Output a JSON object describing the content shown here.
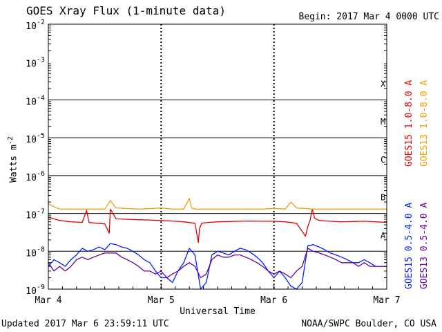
{
  "header": {
    "title": "GOES Xray Flux (1-minute data)",
    "begin": "Begin:  2017 Mar 4 0000 UTC"
  },
  "footer": {
    "updated": "Updated 2017 Mar  6 23:59:11 UTC",
    "credit": "NOAA/SWPC Boulder, CO USA"
  },
  "chart_data": {
    "type": "line",
    "title": "GOES Xray Flux (1-minute data)",
    "xlabel": "Universal Time",
    "ylabel": "Watts m",
    "ylabel_sup": "-2",
    "yscale": "log",
    "ylim_exp": [
      -9,
      -2
    ],
    "ytick_exponents": [
      -9,
      -8,
      -7,
      -6,
      -5,
      -4,
      -3,
      -2
    ],
    "x_ticks": [
      "Mar 4",
      "Mar 5",
      "Mar 6",
      "Mar 7"
    ],
    "xlim_days": [
      0,
      3
    ],
    "flare_classes": [
      {
        "label": "A",
        "exp": -8
      },
      {
        "label": "B",
        "exp": -7
      },
      {
        "label": "C",
        "exp": -6
      },
      {
        "label": "M",
        "exp": -5
      },
      {
        "label": "X",
        "exp": -4
      }
    ],
    "series": [
      {
        "name": "GOES15 1.0-8.0 A",
        "color": "#e00000",
        "x": [
          0.0,
          0.05,
          0.1,
          0.2,
          0.3,
          0.34,
          0.36,
          0.4,
          0.5,
          0.54,
          0.55,
          0.6,
          0.7,
          0.8,
          0.9,
          1.0,
          1.1,
          1.2,
          1.3,
          1.33,
          1.34,
          1.36,
          1.4,
          1.5,
          1.6,
          1.7,
          1.8,
          1.9,
          2.0,
          2.1,
          2.2,
          2.28,
          2.3,
          2.32,
          2.34,
          2.36,
          2.4,
          2.5,
          2.6,
          2.7,
          2.8,
          2.9,
          3.0
        ],
        "y": [
          8e-08,
          7.2e-08,
          6.5e-08,
          6e-08,
          5.8e-08,
          1.2e-07,
          5.8e-08,
          5.6e-08,
          5.3e-08,
          3e-08,
          1.3e-07,
          7.2e-08,
          7e-08,
          6.8e-08,
          6.7e-08,
          6.5e-08,
          6.3e-08,
          6e-08,
          5.5e-08,
          1.7e-08,
          4e-08,
          5.5e-08,
          5.7e-08,
          6e-08,
          6.1e-08,
          6.2e-08,
          6.3e-08,
          6.2e-08,
          6.2e-08,
          6e-08,
          5.5e-08,
          2.5e-08,
          4.5e-08,
          6.5e-08,
          1.3e-07,
          7.5e-08,
          6.5e-08,
          6.2e-08,
          6e-08,
          6.1e-08,
          6.2e-08,
          6e-08,
          5.8e-08
        ]
      },
      {
        "name": "GOES13 1.0-8.0 A",
        "color": "#f0a000",
        "x": [
          0.0,
          0.05,
          0.1,
          0.2,
          0.3,
          0.5,
          0.55,
          0.6,
          0.8,
          1.0,
          1.1,
          1.2,
          1.25,
          1.27,
          1.3,
          1.5,
          1.7,
          1.9,
          2.0,
          2.1,
          2.15,
          2.2,
          2.35,
          2.5,
          2.7,
          2.9,
          3.0
        ],
        "y": [
          1.8e-07,
          1.5e-07,
          1.3e-07,
          1.3e-07,
          1.3e-07,
          1.3e-07,
          2.2e-07,
          1.4e-07,
          1.3e-07,
          1.4e-07,
          1.3e-07,
          1.3e-07,
          2.5e-07,
          1.4e-07,
          1.3e-07,
          1.3e-07,
          1.3e-07,
          1.3e-07,
          1.35e-07,
          1.3e-07,
          2e-07,
          1.4e-07,
          1.3e-07,
          1.3e-07,
          1.3e-07,
          1.3e-07,
          1.3e-07
        ]
      },
      {
        "name": "GOES15 0.5-4.0 A",
        "color": "#0020ff",
        "x": [
          0.0,
          0.05,
          0.1,
          0.15,
          0.2,
          0.25,
          0.3,
          0.35,
          0.4,
          0.45,
          0.5,
          0.55,
          0.6,
          0.65,
          0.7,
          0.75,
          0.8,
          0.85,
          0.9,
          0.95,
          1.0,
          1.05,
          1.1,
          1.15,
          1.2,
          1.25,
          1.3,
          1.35,
          1.4,
          1.45,
          1.5,
          1.55,
          1.6,
          1.65,
          1.7,
          1.75,
          1.8,
          1.85,
          1.9,
          1.95,
          2.0,
          2.05,
          2.1,
          2.15,
          2.2,
          2.25,
          2.3,
          2.35,
          2.4,
          2.45,
          2.5,
          2.55,
          2.6,
          2.65,
          2.7,
          2.75,
          2.8,
          2.85,
          2.9,
          2.95,
          3.0
        ],
        "y": [
          4e-09,
          6e-09,
          5e-09,
          4e-09,
          6e-09,
          8e-09,
          1.2e-08,
          1e-08,
          1.1e-08,
          1.3e-08,
          1.1e-08,
          1.6e-08,
          1.5e-08,
          1.3e-08,
          1.2e-08,
          1e-08,
          8e-09,
          6e-09,
          5e-09,
          3e-09,
          2e-09,
          2e-09,
          1.5e-09,
          3e-09,
          5e-09,
          1.2e-08,
          8e-09,
          1e-09,
          1.5e-09,
          8e-09,
          1e-08,
          9e-09,
          8e-09,
          1e-08,
          1.2e-08,
          1.1e-08,
          9e-09,
          7e-09,
          5e-09,
          3e-09,
          2e-09,
          3e-09,
          2e-09,
          1.2e-09,
          1e-09,
          1.5e-09,
          1.4e-08,
          1.5e-08,
          1.3e-08,
          1.1e-08,
          9e-09,
          8e-09,
          7e-09,
          6e-09,
          5e-09,
          5e-09,
          6e-09,
          5e-09,
          4e-09,
          4e-09,
          4e-09
        ]
      },
      {
        "name": "GOES13 0.5-4.0 A",
        "color": "#6000a0",
        "x": [
          0.0,
          0.05,
          0.1,
          0.15,
          0.2,
          0.25,
          0.3,
          0.35,
          0.4,
          0.45,
          0.5,
          0.55,
          0.6,
          0.65,
          0.7,
          0.75,
          0.8,
          0.85,
          0.9,
          0.95,
          1.0,
          1.05,
          1.1,
          1.15,
          1.2,
          1.25,
          1.3,
          1.35,
          1.4,
          1.45,
          1.5,
          1.55,
          1.6,
          1.65,
          1.7,
          1.75,
          1.8,
          1.85,
          1.9,
          1.95,
          2.0,
          2.05,
          2.1,
          2.15,
          2.2,
          2.25,
          2.3,
          2.35,
          2.4,
          2.45,
          2.5,
          2.55,
          2.6,
          2.65,
          2.7,
          2.75,
          2.8,
          2.85,
          2.9,
          2.95,
          3.0
        ],
        "y": [
          5e-09,
          3e-09,
          4e-09,
          3e-09,
          4e-09,
          6e-09,
          7e-09,
          6e-09,
          7e-09,
          8e-09,
          9e-09,
          9e-09,
          9e-09,
          7e-09,
          6e-09,
          5e-09,
          4e-09,
          3e-09,
          3e-09,
          2.5e-09,
          3e-09,
          2e-09,
          2.5e-09,
          3e-09,
          4e-09,
          5e-09,
          4e-09,
          2e-09,
          2.5e-09,
          6e-09,
          8e-09,
          7e-09,
          7e-09,
          8e-09,
          8e-09,
          7e-09,
          6e-09,
          5e-09,
          4e-09,
          3e-09,
          2.5e-09,
          3e-09,
          2.5e-09,
          2e-09,
          3e-09,
          4e-09,
          1.2e-08,
          1e-08,
          9e-09,
          8e-09,
          7e-09,
          6e-09,
          5e-09,
          5e-09,
          5e-09,
          4e-09,
          5e-09,
          4e-09,
          4e-09,
          4e-09,
          4e-09
        ]
      }
    ]
  }
}
